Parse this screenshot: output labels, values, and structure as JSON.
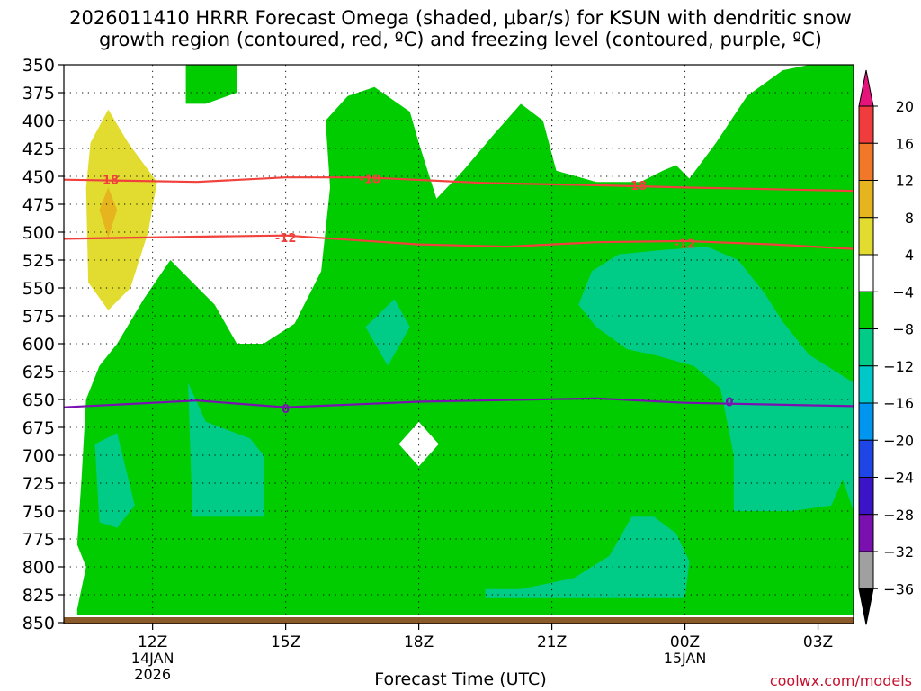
{
  "title_line1": "2026011410 HRRR Forecast Omega (shaded, μbar/s) for KSUN with dendritic snow",
  "title_line2": "growth region (contoured, red, ºC) and freezing level (contoured, purple, ºC)",
  "credit": "coolwx.com/models",
  "colors": {
    "yellow": "#e2dc30",
    "gold": "#e6b41e",
    "white": "#ffffff",
    "green": "#00cc00",
    "teal": "#00cc88",
    "red_contour": "#f0413c",
    "purple_contour": "#7a10b0",
    "ground": "#8b5a2b"
  },
  "chart_data": {
    "type": "heatmap",
    "xlabel": "Forecast Time (UTC)",
    "ylabel": "",
    "x_ticks": [
      {
        "label": "12Z",
        "sub1": "14JAN",
        "sub2": "2026",
        "hour": 12
      },
      {
        "label": "15Z",
        "sub1": "",
        "sub2": "",
        "hour": 15
      },
      {
        "label": "18Z",
        "sub1": "",
        "sub2": "",
        "hour": 18
      },
      {
        "label": "21Z",
        "sub1": "",
        "sub2": "",
        "hour": 21
      },
      {
        "label": "00Z",
        "sub1": "15JAN",
        "sub2": "",
        "hour": 24
      },
      {
        "label": "03Z",
        "sub1": "",
        "sub2": "",
        "hour": 27
      }
    ],
    "xlim": [
      10,
      27.8
    ],
    "y_ticks": [
      350,
      375,
      400,
      425,
      450,
      475,
      500,
      525,
      550,
      575,
      600,
      625,
      650,
      675,
      700,
      725,
      750,
      775,
      800,
      825,
      850
    ],
    "ylim": [
      350,
      850
    ],
    "colorbar": {
      "labels": [
        "20",
        "16",
        "12",
        "8",
        "4",
        "−4",
        "−8",
        "−12",
        "−16",
        "−20",
        "−24",
        "−28",
        "−32",
        "−36"
      ],
      "colors": [
        "#f03c3c",
        "#f07828",
        "#e6b41e",
        "#e2dc30",
        "#ffffff",
        "#00cc00",
        "#00cc88",
        "#00c8c8",
        "#0096f0",
        "#1e46e6",
        "#3c14c8",
        "#7a10b0",
        "#a0a0a0"
      ],
      "top_color": "#e6147a",
      "bottom_color": "#000000"
    },
    "regions": [
      {
        "name": "white",
        "fill": "white",
        "pts": [
          [
            10,
            350
          ],
          [
            27.8,
            350
          ],
          [
            27.8,
            850
          ],
          [
            10,
            850
          ]
        ]
      },
      {
        "name": "green-main",
        "fill": "green",
        "pts": [
          [
            10.3,
            838
          ],
          [
            10.5,
            800
          ],
          [
            10.3,
            780
          ],
          [
            10.4,
            720
          ],
          [
            10.5,
            650
          ],
          [
            10.8,
            620
          ],
          [
            11.2,
            600
          ],
          [
            11.8,
            560
          ],
          [
            12.4,
            525
          ],
          [
            12.9,
            545
          ],
          [
            13.4,
            565
          ],
          [
            13.9,
            600
          ],
          [
            14.5,
            600
          ],
          [
            15.2,
            582
          ],
          [
            15.8,
            535
          ],
          [
            16,
            460
          ],
          [
            15.9,
            400
          ],
          [
            16.4,
            378
          ],
          [
            17,
            370
          ],
          [
            17.8,
            392
          ],
          [
            18,
            420
          ],
          [
            18.4,
            470
          ],
          [
            19,
            445
          ],
          [
            19.7,
            412
          ],
          [
            20.3,
            385
          ],
          [
            20.8,
            400
          ],
          [
            21.1,
            445
          ],
          [
            22,
            455
          ],
          [
            23,
            455
          ],
          [
            23.5,
            445
          ],
          [
            23.8,
            440
          ],
          [
            24.1,
            452
          ],
          [
            24.7,
            420
          ],
          [
            25.4,
            378
          ],
          [
            26.2,
            355
          ],
          [
            26.8,
            350
          ],
          [
            27.3,
            350
          ],
          [
            27.8,
            350
          ],
          [
            27.8,
            850
          ],
          [
            10.3,
            850
          ]
        ]
      },
      {
        "name": "green-top",
        "fill": "green",
        "pts": [
          [
            12.75,
            350
          ],
          [
            13.9,
            350
          ],
          [
            13.9,
            375
          ],
          [
            13.2,
            385
          ],
          [
            12.75,
            385
          ]
        ]
      },
      {
        "name": "teal-right",
        "fill": "teal",
        "pts": [
          [
            21.6,
            565
          ],
          [
            21.9,
            535
          ],
          [
            22.5,
            520
          ],
          [
            23.5,
            516
          ],
          [
            24.5,
            513
          ],
          [
            25.2,
            525
          ],
          [
            25.8,
            555
          ],
          [
            26.2,
            580
          ],
          [
            26.8,
            610
          ],
          [
            27.8,
            635
          ],
          [
            27.8,
            700
          ],
          [
            27.3,
            745
          ],
          [
            26.4,
            750
          ],
          [
            25.1,
            750
          ],
          [
            25.1,
            700
          ],
          [
            24.8,
            640
          ],
          [
            24.2,
            620
          ],
          [
            23.3,
            610
          ],
          [
            22.7,
            605
          ],
          [
            22,
            585
          ]
        ]
      },
      {
        "name": "teal-bottom",
        "fill": "teal",
        "pts": [
          [
            19.5,
            820
          ],
          [
            20.3,
            820
          ],
          [
            21.5,
            810
          ],
          [
            22.3,
            790
          ],
          [
            22.8,
            755
          ],
          [
            23.3,
            755
          ],
          [
            23.8,
            770
          ],
          [
            24.1,
            795
          ],
          [
            24,
            828
          ],
          [
            19.5,
            828
          ]
        ]
      },
      {
        "name": "teal-center",
        "fill": "teal",
        "pts": [
          [
            17.45,
            560
          ],
          [
            17.8,
            585
          ],
          [
            17.3,
            620
          ],
          [
            16.8,
            585
          ]
        ]
      },
      {
        "name": "teal-left",
        "fill": "teal",
        "pts": [
          [
            10.7,
            690
          ],
          [
            11.2,
            680
          ],
          [
            11.6,
            745
          ],
          [
            11.2,
            765
          ],
          [
            10.8,
            760
          ]
        ]
      },
      {
        "name": "teal-left2",
        "fill": "teal",
        "pts": [
          [
            12.8,
            635
          ],
          [
            13.2,
            670
          ],
          [
            14.2,
            685
          ],
          [
            14.5,
            700
          ],
          [
            14.5,
            755
          ],
          [
            12.9,
            755
          ]
        ]
      },
      {
        "name": "teal-edge",
        "fill": "teal",
        "pts": [
          [
            27.8,
            690
          ],
          [
            27.5,
            715
          ],
          [
            27.8,
            750
          ]
        ]
      },
      {
        "name": "white-hole",
        "fill": "white",
        "pts": [
          [
            18,
            670
          ],
          [
            18.45,
            690
          ],
          [
            18,
            710
          ],
          [
            17.55,
            690
          ]
        ]
      },
      {
        "name": "yellow-left",
        "fill": "yellow",
        "pts": [
          [
            11,
            390
          ],
          [
            11.45,
            420
          ],
          [
            12.1,
            455
          ],
          [
            11.9,
            500
          ],
          [
            11.5,
            550
          ],
          [
            11,
            570
          ],
          [
            10.55,
            545
          ],
          [
            10.5,
            460
          ],
          [
            10.6,
            420
          ]
        ]
      },
      {
        "name": "gold-left",
        "fill": "gold",
        "pts": [
          [
            11,
            460
          ],
          [
            11.2,
            480
          ],
          [
            11,
            505
          ],
          [
            10.8,
            480
          ]
        ]
      }
    ],
    "contours": [
      {
        "name": "-18C",
        "color": "red_contour",
        "label": "-18",
        "label_at": [
          [
            11,
            453
          ],
          [
            16.9,
            452
          ],
          [
            22.9,
            458
          ]
        ],
        "pts": [
          [
            10,
            453
          ],
          [
            13,
            455
          ],
          [
            15,
            451
          ],
          [
            16.8,
            451
          ],
          [
            19.5,
            456
          ],
          [
            22,
            458
          ],
          [
            24,
            460
          ],
          [
            27.8,
            463
          ]
        ]
      },
      {
        "name": "-12C",
        "color": "red_contour",
        "label": "-12",
        "label_at": [
          [
            15,
            505
          ],
          [
            24,
            510
          ]
        ],
        "pts": [
          [
            10,
            506
          ],
          [
            13,
            504
          ],
          [
            15,
            503
          ],
          [
            16.5,
            507
          ],
          [
            18,
            511
          ],
          [
            20,
            513
          ],
          [
            22,
            509
          ],
          [
            24,
            508
          ],
          [
            26,
            511
          ],
          [
            27.8,
            515
          ]
        ]
      },
      {
        "name": "0C",
        "color": "purple_contour",
        "label": "0",
        "label_at": [
          [
            15,
            658
          ],
          [
            25,
            652
          ]
        ],
        "pts": [
          [
            10,
            657
          ],
          [
            13,
            651
          ],
          [
            15,
            657
          ],
          [
            18,
            652
          ],
          [
            22,
            649
          ],
          [
            24,
            653
          ],
          [
            27.8,
            656
          ]
        ]
      }
    ]
  }
}
